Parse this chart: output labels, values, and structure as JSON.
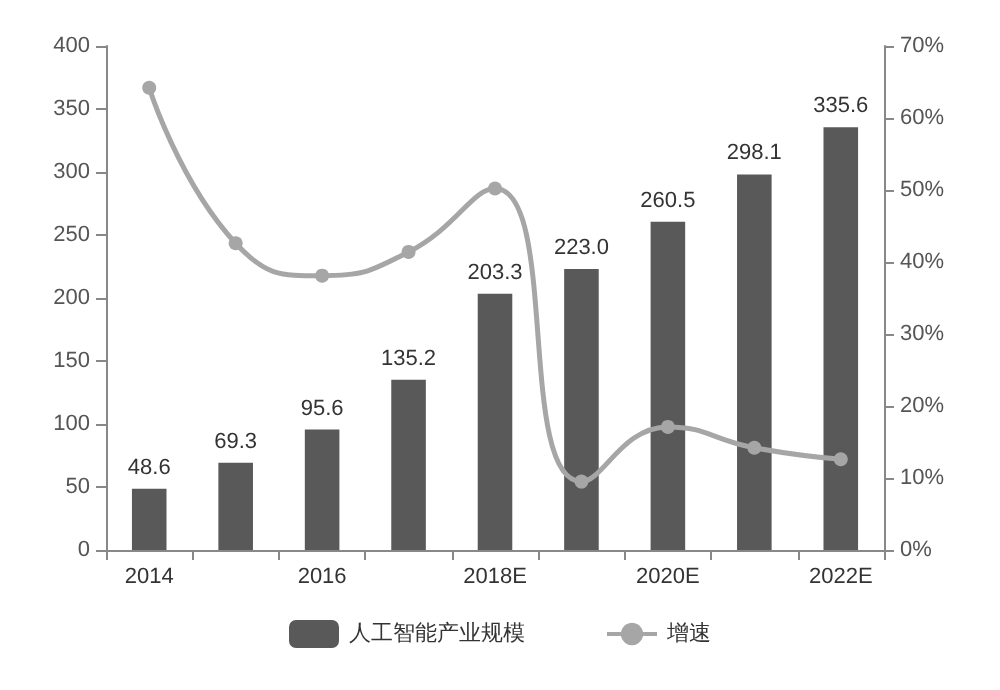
{
  "chart_data": {
    "type": "bar",
    "categories": [
      "2014",
      null,
      "2016",
      null,
      "2018E",
      null,
      "2020E",
      null,
      "2022E"
    ],
    "series": [
      {
        "name": "人工智能产业规模",
        "color": "#595959",
        "values": [
          48.6,
          69.3,
          95.6,
          135.2,
          203.3,
          223.0,
          260.5,
          298.1,
          335.6
        ],
        "value_labels": [
          "48.6",
          "69.3",
          "95.6",
          "135.2",
          "203.3",
          "223.0",
          "260.5",
          "298.1",
          "335.6"
        ]
      },
      {
        "name": "增速",
        "type": "line",
        "axis": "y2",
        "color": "#a6a6a6",
        "marker": "circle",
        "values": [
          64.2,
          42.6,
          38.1,
          41.4,
          50.2,
          9.5,
          17.1,
          14.2,
          12.6
        ]
      }
    ],
    "ylim": [
      0,
      400
    ],
    "yticks": [
      0,
      50,
      100,
      150,
      200,
      250,
      300,
      350,
      400
    ],
    "y2lim": [
      0,
      70
    ],
    "y2ticks": [
      {
        "value": 0,
        "label": "0%"
      },
      {
        "value": 10,
        "label": "10%"
      },
      {
        "value": 20,
        "label": "20%"
      },
      {
        "value": 30,
        "label": "30%"
      },
      {
        "value": 40,
        "label": "40%"
      },
      {
        "value": 50,
        "label": "50%"
      },
      {
        "value": 60,
        "label": "60%"
      },
      {
        "value": 70,
        "label": "70%"
      }
    ],
    "grid": false,
    "legend": "bottom"
  }
}
